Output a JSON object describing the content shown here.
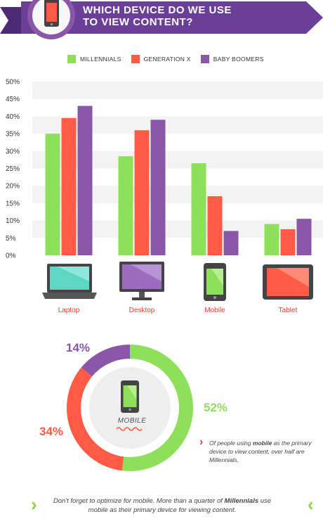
{
  "header": {
    "title_line1": "WHICH DEVICE DO WE USE",
    "title_line2": "TO VIEW CONTENT?",
    "ribbon_color": "#6b3f97",
    "icon": "smartphone-icon"
  },
  "colors": {
    "millennials": "#8ee05a",
    "generation_x": "#ff5a43",
    "baby_boomers": "#8a56a8",
    "grid_band": "#f3f3f3",
    "category_label": "#e63b2e"
  },
  "legend": [
    {
      "label": "MILLENNIALS",
      "color": "#8ee05a"
    },
    {
      "label": "GENERATION X",
      "color": "#ff5a43"
    },
    {
      "label": "BABY BOOMERS",
      "color": "#8a56a8"
    }
  ],
  "chart_data": {
    "type": "bar",
    "categories": [
      "Laptop",
      "Desktop",
      "Mobile",
      "Tablet"
    ],
    "series": [
      {
        "name": "MILLENNIALS",
        "values": [
          35,
          28.5,
          26.5,
          9
        ]
      },
      {
        "name": "GENERATION X",
        "values": [
          39.5,
          36,
          17,
          7.5
        ]
      },
      {
        "name": "BABY BOOMERS",
        "values": [
          43,
          39,
          7,
          10.5
        ]
      }
    ],
    "yticks": [
      "0%",
      "5%",
      "10%",
      "15%",
      "20%",
      "25%",
      "30%",
      "35%",
      "40%",
      "45%",
      "50%"
    ],
    "ylim": [
      0,
      50
    ],
    "legend_position": "top",
    "grid": "alternating bands",
    "category_icons": [
      "laptop-icon",
      "desktop-icon",
      "mobile-icon",
      "tablet-icon"
    ]
  },
  "donut": {
    "chart_data": {
      "type": "pie",
      "labels": [
        "Millennials",
        "Generation X",
        "Baby Boomers"
      ],
      "values": [
        52,
        34,
        14
      ]
    },
    "labels": {
      "millennials": "52%",
      "generation_x": "34%",
      "baby_boomers": "14%"
    },
    "center_caption": "MOBILE",
    "note_prefix": "Of people using ",
    "note_bold": "mobile",
    "note_suffix": " as the primary device to view content, over half are Millennials."
  },
  "footer": {
    "text_before": "Don't forget to optimize for mobile. More than a quarter of ",
    "text_bold": "Millennials",
    "text_after": " use mobile as their primary device for viewing content."
  }
}
